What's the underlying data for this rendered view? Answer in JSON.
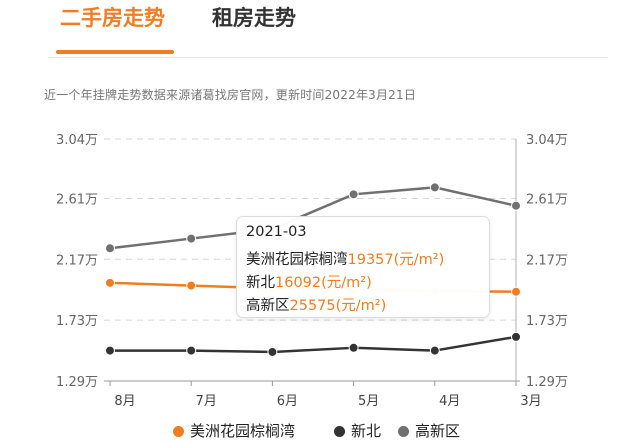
{
  "tabs": {
    "active": "二手房走势",
    "inactive": "租房走势"
  },
  "note": "近一个年挂牌走势数据来源诸葛找房官网，更新时间2022年3月21日",
  "tooltip": {
    "date": "2021-03",
    "rows": [
      {
        "name": "美洲花园棕榈湾",
        "value": "19357",
        "unit": "(元/m²)"
      },
      {
        "name": "新北",
        "value": "16092",
        "unit": "(元/m²)"
      },
      {
        "name": "高新区",
        "value": "25575",
        "unit": "(元/m²)"
      }
    ]
  },
  "colors": {
    "accent": "#f07d22",
    "xinbei": "#333333",
    "gaoxin": "#707070",
    "grid": "#d6d6d6"
  },
  "chart_data": {
    "type": "line",
    "categories": [
      "8月",
      "7月",
      "6月",
      "5月",
      "4月",
      "3月"
    ],
    "y_ticks": [
      "3.04万",
      "2.61万",
      "2.17万",
      "1.73万",
      "1.29万"
    ],
    "y_tick_values": [
      30400,
      26100,
      21700,
      17300,
      12900
    ],
    "ylim": [
      12900,
      30400
    ],
    "series": [
      {
        "name": "美洲花园棕榈湾",
        "color": "#f07d22",
        "values": [
          20000,
          19800,
          19600,
          19500,
          19400,
          19357
        ]
      },
      {
        "name": "新北",
        "color": "#333333",
        "values": [
          15100,
          15100,
          15000,
          15300,
          15100,
          16092
        ]
      },
      {
        "name": "高新区",
        "color": "#707070",
        "values": [
          22500,
          23200,
          23900,
          26400,
          26900,
          25575
        ]
      }
    ],
    "grid": true,
    "legend_position": "bottom",
    "highlight_category": "3月"
  }
}
